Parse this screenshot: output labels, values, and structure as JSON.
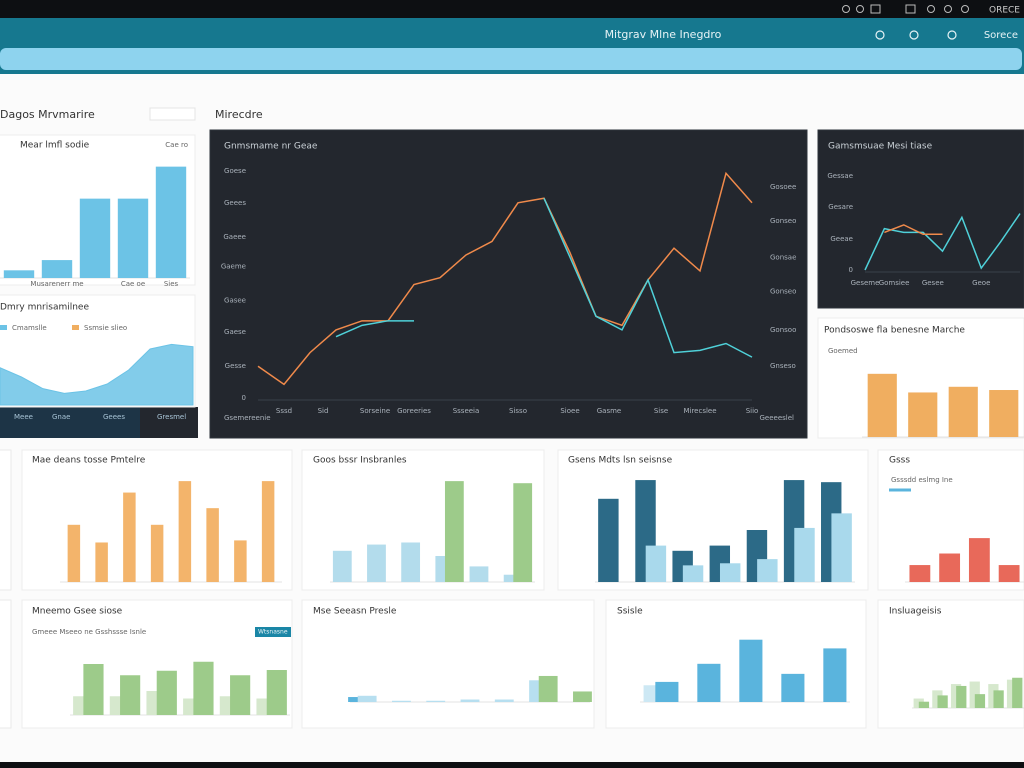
{
  "header": {
    "status": "ORECE",
    "title": "Mitgrav Mlne Inegdro",
    "account": "Sorece"
  },
  "sections": [
    "Dagos Mrvmarire",
    "Mirecdre"
  ],
  "tabs": [
    "Meee",
    "Gnae",
    "Geees",
    "Gresmel"
  ],
  "chart_data": [
    {
      "type": "bar",
      "title": "Mear lmfl sodie",
      "annotations": [
        "Cae ro"
      ],
      "categories": [
        null,
        "Musarenerr me",
        null,
        "Cae oe",
        "Sies"
      ],
      "values": [
        6,
        14,
        62,
        62,
        87
      ],
      "color": "#6cc3e6",
      "ylim": [
        0,
        100
      ]
    },
    {
      "type": "area",
      "title": "Dmry mnrisamilnee",
      "legend": [
        {
          "name": "Cmamslle",
          "color": "#6cc3e6"
        },
        {
          "name": "Ssmsie slieo",
          "color": "#f0ae60"
        }
      ],
      "values": [
        32,
        24,
        14,
        10,
        12,
        18,
        30,
        48,
        52,
        50
      ],
      "color": "#6cc3e6",
      "ylim": [
        0,
        60
      ]
    },
    {
      "type": "line",
      "title": "Gnmsmame nr Geae",
      "annotations": [
        "Gsemereenie",
        "Geeeeslel"
      ],
      "x": [
        0,
        1,
        2,
        3,
        4,
        5,
        6,
        7,
        8,
        9,
        10,
        11,
        12,
        13,
        14,
        15,
        16,
        17,
        18,
        19
      ],
      "xlim": [
        0,
        19
      ],
      "xticks": [
        {
          "value": 1,
          "label": "Sssd"
        },
        {
          "value": 2.5,
          "label": "Sid"
        },
        {
          "value": 4.5,
          "label": "Sorseine"
        },
        {
          "value": 6,
          "label": "Goreeries"
        },
        {
          "value": 8,
          "label": "Ssseeia"
        },
        {
          "value": 10,
          "label": "Sisso"
        },
        {
          "value": 12,
          "label": "Sioee"
        },
        {
          "value": 13.5,
          "label": "Gasme"
        },
        {
          "value": 15.5,
          "label": "Sise"
        },
        {
          "value": 17,
          "label": "Mirecslee"
        },
        {
          "value": 19,
          "label": "Siio"
        }
      ],
      "ylim": [
        0,
        100
      ],
      "yticks": [
        0,
        {
          "value": 14,
          "label": "Gesse"
        },
        {
          "value": 29,
          "label": "Gaese"
        },
        {
          "value": 43,
          "label": "Gasee"
        },
        {
          "value": 58,
          "label": "Gaeme"
        },
        {
          "value": 71,
          "label": "Gaeee"
        },
        {
          "value": 86,
          "label": "Geees"
        },
        {
          "value": 100,
          "label": "Goese"
        }
      ],
      "y2lim": [
        0,
        100
      ],
      "y2ticks": [
        {
          "value": 14,
          "label": "Gnseso"
        },
        {
          "value": 30,
          "label": "Gonsoo"
        },
        {
          "value": 47,
          "label": "Gonseo"
        },
        {
          "value": 62,
          "label": "Gonsae"
        },
        {
          "value": 78,
          "label": "Gonseo"
        },
        {
          "value": 93,
          "label": "Gosoee"
        }
      ],
      "series": [
        {
          "color": "#f08a4b",
          "values": [
            14,
            6,
            20,
            30,
            34,
            34,
            50,
            53,
            63,
            69,
            86,
            88,
            64,
            36,
            32,
            52,
            66,
            56,
            99,
            86
          ]
        },
        {
          "color": "#4fd1d9",
          "values": [
            null,
            null,
            null,
            27,
            32,
            34,
            34,
            null,
            null,
            null,
            null,
            88,
            62,
            36,
            30,
            52,
            20,
            21,
            24,
            18
          ]
        }
      ]
    },
    {
      "type": "line",
      "title": "Gamsmsuae Mesi tiase",
      "x": [
        0,
        1,
        2,
        3,
        4,
        5,
        6,
        7,
        8
      ],
      "xlim": [
        0,
        8
      ],
      "xticks": [
        {
          "value": 0,
          "label": "Geseme"
        },
        {
          "value": 1.5,
          "label": "Gomsiee"
        },
        {
          "value": 3.5,
          "label": "Gesee"
        },
        {
          "value": 6,
          "label": "Geoe"
        }
      ],
      "ylim": [
        0,
        100
      ],
      "yticks": [
        0,
        {
          "value": 33,
          "label": "Geeae"
        },
        {
          "value": 67,
          "label": "Gesare"
        },
        {
          "value": 100,
          "label": "Gessae"
        }
      ],
      "series": [
        {
          "color": "#4fd1d9",
          "values": [
            0,
            44,
            40,
            40,
            20,
            56,
            2,
            30,
            60
          ]
        },
        {
          "color": "#f08a4b",
          "values": [
            null,
            40,
            48,
            38,
            38,
            null,
            null,
            null,
            null
          ]
        }
      ]
    },
    {
      "type": "bar",
      "title": "Pondsoswe fla benesne Marche",
      "annotations": [
        "Goemed"
      ],
      "values": [
        78,
        55,
        62,
        58
      ],
      "color": "#f0ae60",
      "ylim": [
        0,
        100
      ]
    },
    {
      "type": "bar",
      "title": "Mae deans tosse Pmtelre",
      "values": [
        55,
        38,
        86,
        55,
        97,
        71,
        40,
        97
      ],
      "color": "#f3b46b",
      "ylim": [
        0,
        100
      ]
    },
    {
      "type": "bar",
      "title": "Goos bssr Insbranles",
      "ylim": [
        0,
        100
      ],
      "series": [
        {
          "color": "#b3dcec",
          "values": [
            30,
            36,
            38,
            25,
            15,
            7
          ]
        },
        {
          "color": "#9dcb8a",
          "values": [
            0,
            0,
            0,
            97,
            0,
            95
          ]
        }
      ]
    },
    {
      "type": "bar",
      "title": "Gsens Mdts lsn seisnse",
      "ylim": [
        0,
        100
      ],
      "series": [
        {
          "color": "#2c6a87",
          "values": [
            80,
            98,
            30,
            35,
            50,
            98,
            96
          ]
        },
        {
          "color": "#a9d9ec",
          "values": [
            0,
            35,
            16,
            18,
            22,
            52,
            66
          ]
        }
      ]
    },
    {
      "type": "bar",
      "title": "Gsss",
      "legend": [
        {
          "name": "Gsssdd eslmg Ine",
          "color": "#5ab4dd"
        }
      ],
      "values": [
        22,
        37,
        57,
        22
      ],
      "color": "#e8695a",
      "ylim": [
        0,
        100
      ]
    },
    {
      "type": "bar",
      "title": "Mneemo Gsee siose",
      "subtitle": "Gmeee Mseeo ne Gsshssse Isnle",
      "badge": "Wtsnasne",
      "ylim": [
        0,
        100
      ],
      "series": [
        {
          "color": "#d6e8cd",
          "values": [
            25,
            25,
            32,
            22,
            25,
            22
          ]
        },
        {
          "color": "#9dcb8a",
          "values": [
            68,
            53,
            59,
            71,
            53,
            60
          ]
        }
      ]
    },
    {
      "type": "bar",
      "title": "Mse Seeasn Presle",
      "ylim": [
        0,
        100
      ],
      "series": [
        {
          "color": "#5ab4dd",
          "values": [
            8,
            0,
            0,
            0,
            0,
            0,
            0
          ]
        },
        {
          "color": "#b7dff0",
          "values": [
            10,
            2,
            2,
            4,
            4,
            35,
            0
          ]
        },
        {
          "color": "#9dcb8a",
          "values": [
            0,
            0,
            0,
            0,
            0,
            42,
            17
          ]
        }
      ]
    },
    {
      "type": "bar",
      "title": "Ssisle",
      "ylim": [
        0,
        100
      ],
      "series": [
        {
          "color": "#cde8f4",
          "values": [
            25,
            0,
            0,
            0,
            0
          ]
        },
        {
          "color": "#5ab4dd",
          "values": [
            30,
            57,
            93,
            42,
            80
          ]
        }
      ]
    },
    {
      "type": "bar",
      "title": "Insluageisis",
      "ylim": [
        0,
        100
      ],
      "series": [
        {
          "color": "#d6e8cd",
          "values": [
            15,
            28,
            38,
            42,
            38,
            45
          ]
        },
        {
          "color": "#9dcb8a",
          "values": [
            10,
            20,
            35,
            22,
            28,
            48
          ]
        }
      ]
    }
  ]
}
